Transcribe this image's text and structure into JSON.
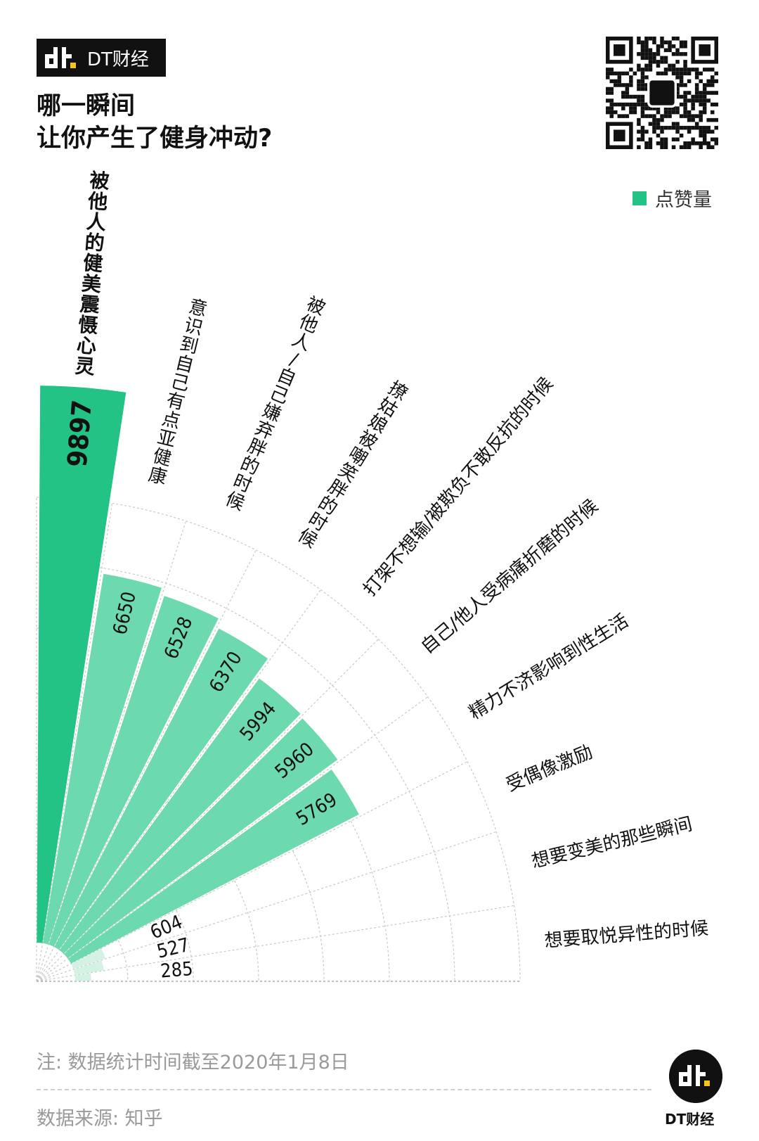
{
  "brand": {
    "name": "DT财经",
    "accent": "#f5c518"
  },
  "title": {
    "line1": "哪一瞬间",
    "line2": "让你产生了健身冲动?"
  },
  "legend": {
    "label": "点赞量",
    "color": "#22c384"
  },
  "chart_data": {
    "type": "bar",
    "polar": true,
    "title": "哪一瞬间让你产生了健身冲动?",
    "categories": [
      "被他人的健美震慑心灵",
      "意识到自己有点亚健康",
      "被他人/自己嫌弃胖的时候",
      "撩姑娘被嘲笑胖的时候",
      "打架不想输/被欺负不敢反抗的时候",
      "自己/他人受病痛折磨的时候",
      "精力不济影响到性生活",
      "受偶像激励",
      "想要变美的那些瞬间",
      "想要取悦异性的时候"
    ],
    "series": [
      {
        "name": "点赞量",
        "values": [
          9897,
          6650,
          6528,
          6370,
          5994,
          5960,
          5769,
          604,
          527,
          285
        ]
      }
    ],
    "value_labels": [
      "9897",
      "6650",
      "6528",
      "6370",
      "5994",
      "5960",
      "5769",
      "604",
      "527",
      "285"
    ],
    "colors": {
      "top": "#22c384",
      "mid": "#6dd9ae",
      "low": "#d4f2e4",
      "grid": "#c8c8c8"
    },
    "grid": true
  },
  "footer": {
    "note": "注: 数据统计时间截至2020年1月8日",
    "source": "数据来源: 知乎",
    "logo_name": "DT财经"
  }
}
